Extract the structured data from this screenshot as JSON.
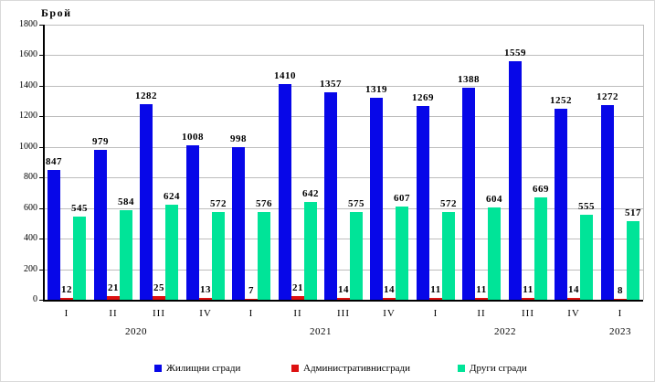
{
  "chart_data": {
    "type": "bar",
    "title": "",
    "ylabel": "Брой",
    "xlabel": "",
    "ylim": [
      0,
      1800
    ],
    "ytick_step": 200,
    "grid": true,
    "legend_position": "bottom",
    "quarters": [
      "I",
      "II",
      "III",
      "IV",
      "I",
      "II",
      "III",
      "IV",
      "I",
      "II",
      "III",
      "IV",
      "I"
    ],
    "year_groups": [
      {
        "label": "2020",
        "start": 0,
        "count": 4
      },
      {
        "label": "2021",
        "start": 4,
        "count": 4
      },
      {
        "label": "2022",
        "start": 8,
        "count": 4
      },
      {
        "label": "2023",
        "start": 12,
        "count": 1
      }
    ],
    "series": [
      {
        "key": "residential",
        "name": "Жилищни сгради",
        "color": "#0707e8",
        "values": [
          847,
          979,
          1282,
          1008,
          998,
          1410,
          1357,
          1319,
          1269,
          1388,
          1559,
          1252,
          1272
        ]
      },
      {
        "key": "administrative",
        "name": "Административнисгради",
        "color": "#dd1111",
        "values": [
          12,
          21,
          25,
          13,
          7,
          21,
          14,
          14,
          11,
          11,
          11,
          14,
          8
        ]
      },
      {
        "key": "other",
        "name": "Други сгради",
        "color": "#00e498",
        "values": [
          545,
          584,
          624,
          572,
          576,
          642,
          575,
          607,
          572,
          604,
          669,
          555,
          517
        ]
      }
    ],
    "colors": {
      "grid": "#bdbdbd",
      "axis": "#000000",
      "text": "#000000"
    },
    "legend_x_positions": [
      168,
      318,
      500
    ]
  }
}
